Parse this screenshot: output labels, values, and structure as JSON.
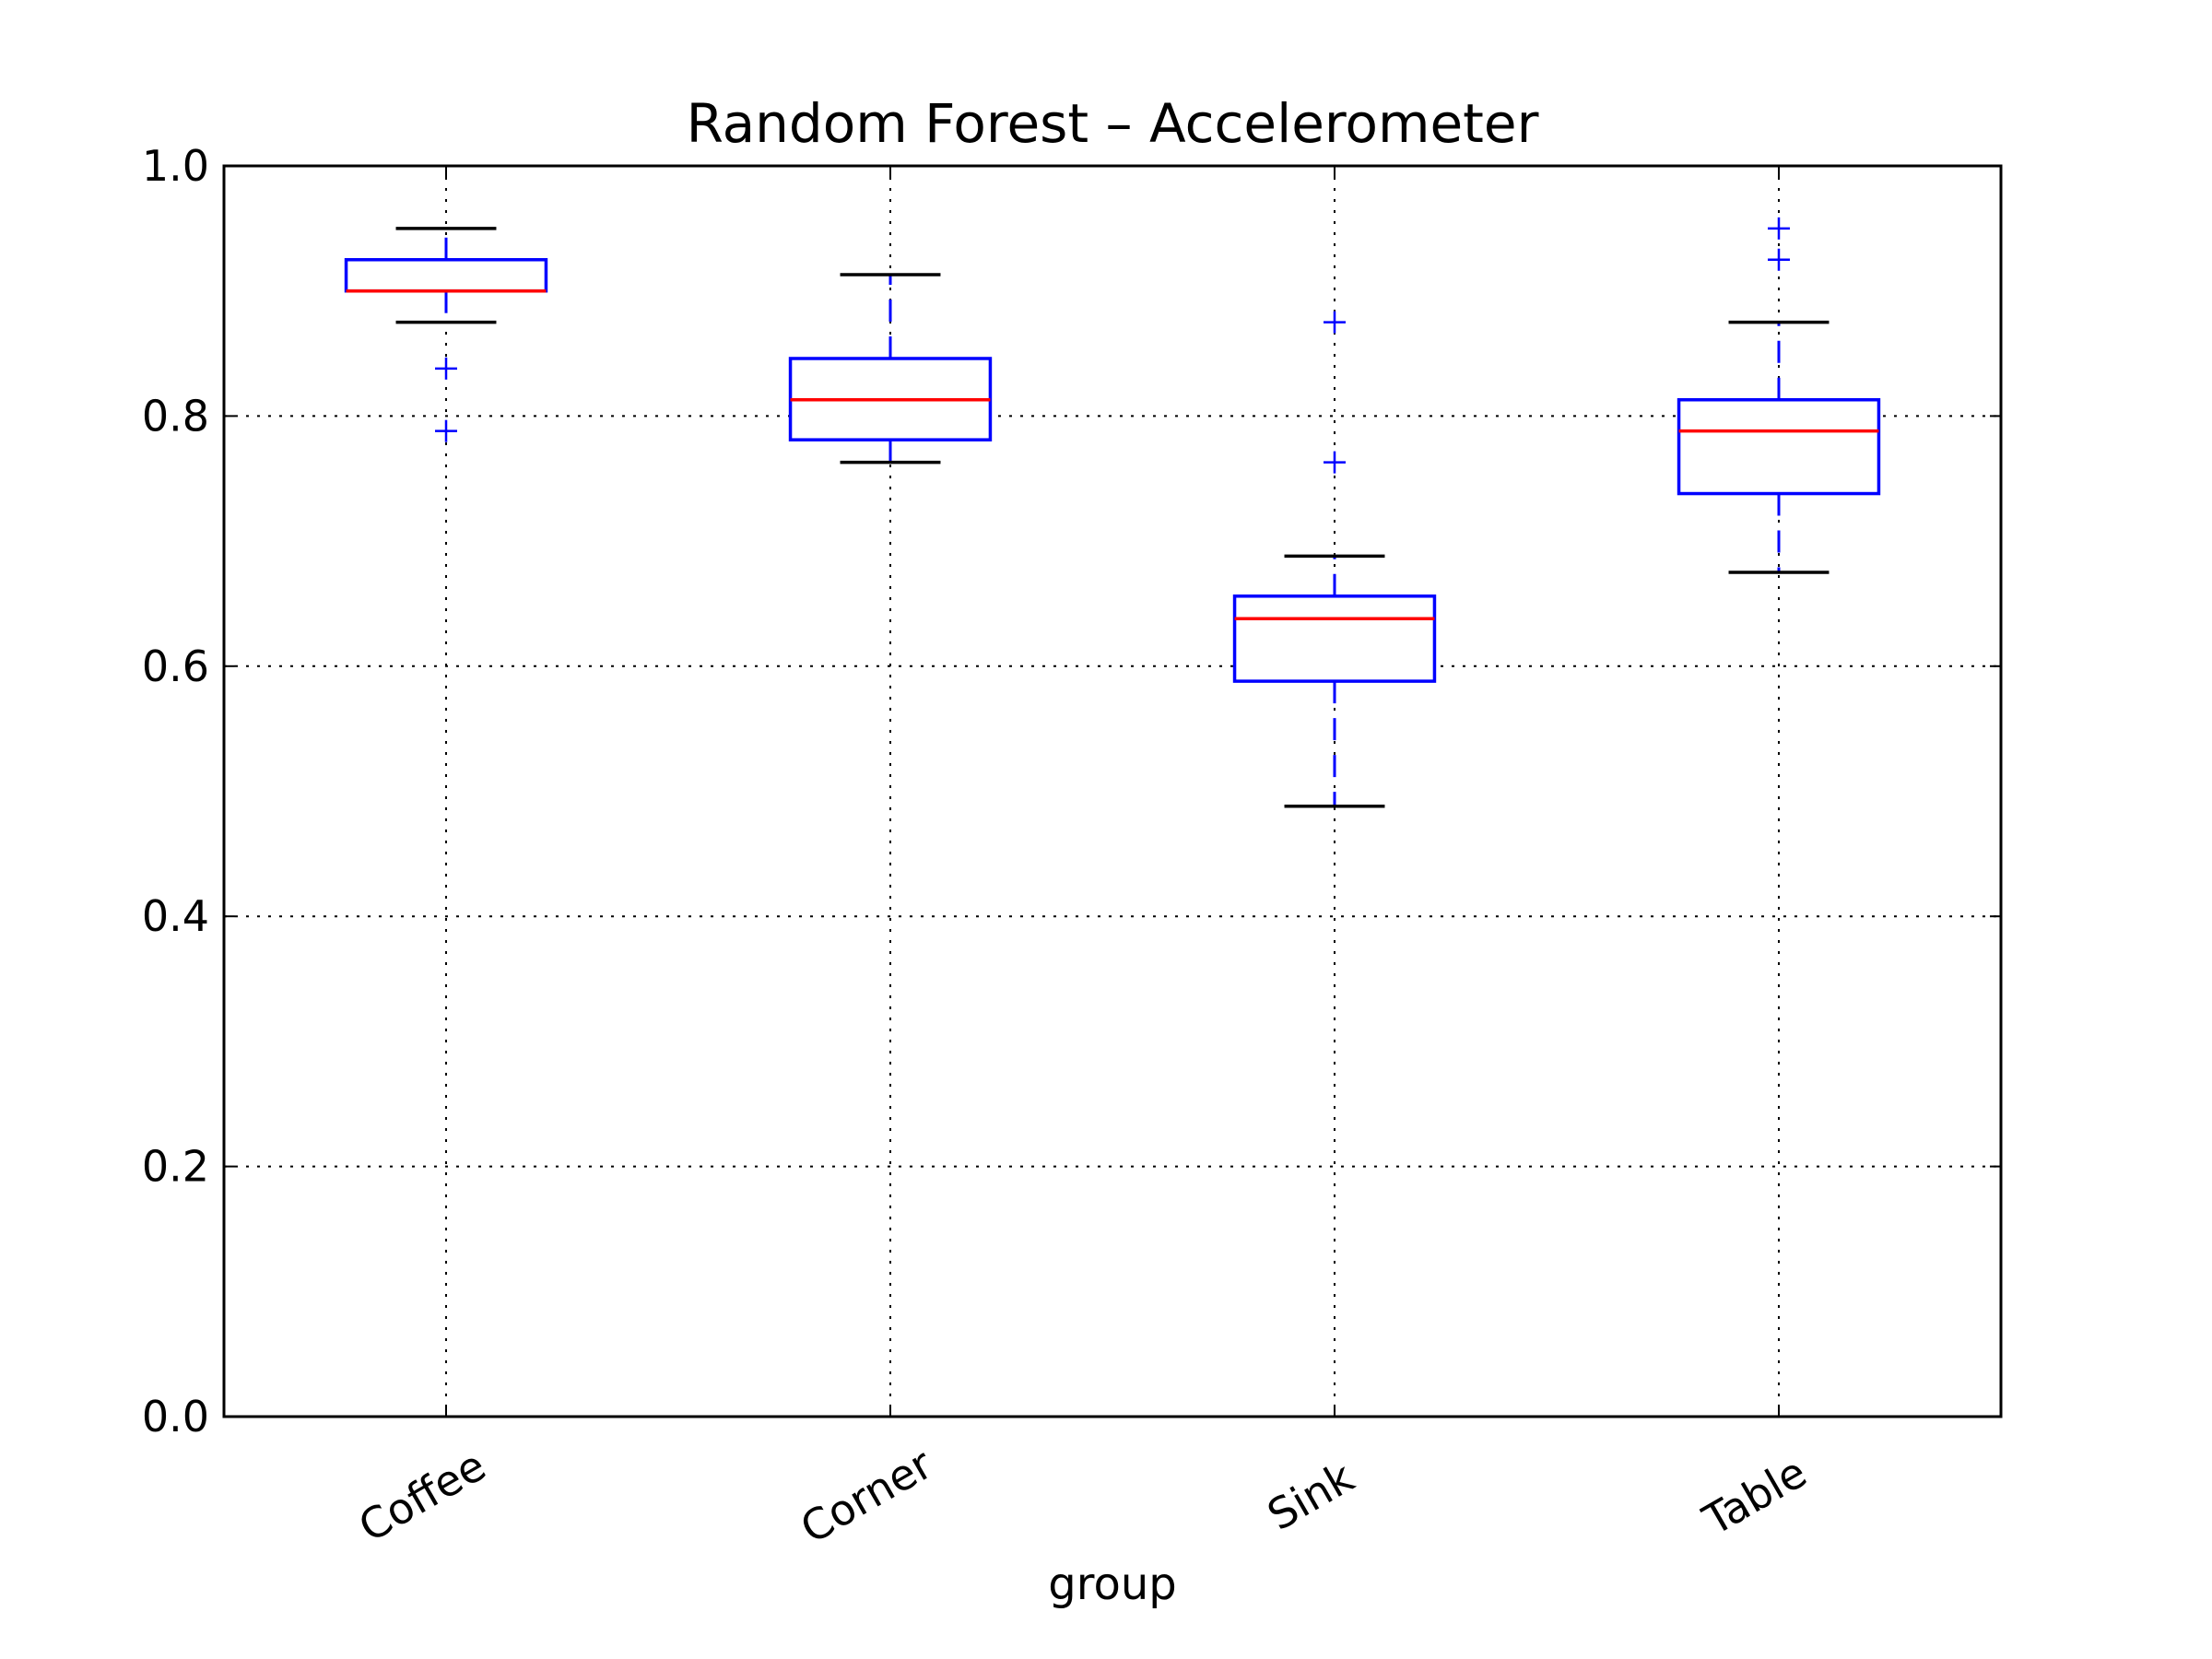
{
  "chart_data": {
    "type": "box",
    "title": "Random Forest – Accelerometer",
    "xlabel": "group",
    "ylabel": "",
    "ylim": [
      0.0,
      1.0
    ],
    "yticks": [
      "0.0",
      "0.2",
      "0.4",
      "0.6",
      "0.8",
      "1.0"
    ],
    "grid": true,
    "categories": [
      "Coffee",
      "Corner",
      "Sink",
      "Table"
    ],
    "boxes": [
      {
        "category": "Coffee",
        "whisker_low": 0.875,
        "q1": 0.9,
        "median": 0.9,
        "q3": 0.925,
        "whisker_high": 0.95,
        "outliers": [
          0.838,
          0.788
        ]
      },
      {
        "category": "Corner",
        "whisker_low": 0.763,
        "q1": 0.781,
        "median": 0.813,
        "q3": 0.846,
        "whisker_high": 0.913,
        "outliers": []
      },
      {
        "category": "Sink",
        "whisker_low": 0.488,
        "q1": 0.588,
        "median": 0.638,
        "q3": 0.656,
        "whisker_high": 0.688,
        "outliers": [
          0.875,
          0.763
        ]
      },
      {
        "category": "Table",
        "whisker_low": 0.675,
        "q1": 0.738,
        "median": 0.788,
        "q3": 0.813,
        "whisker_high": 0.875,
        "outliers": [
          0.95,
          0.925
        ]
      }
    ],
    "colors": {
      "box": "#0000ff",
      "median": "#ff0000",
      "whisker_cap": "#000000",
      "outlier": "#0000ff",
      "grid": "#000000"
    }
  }
}
